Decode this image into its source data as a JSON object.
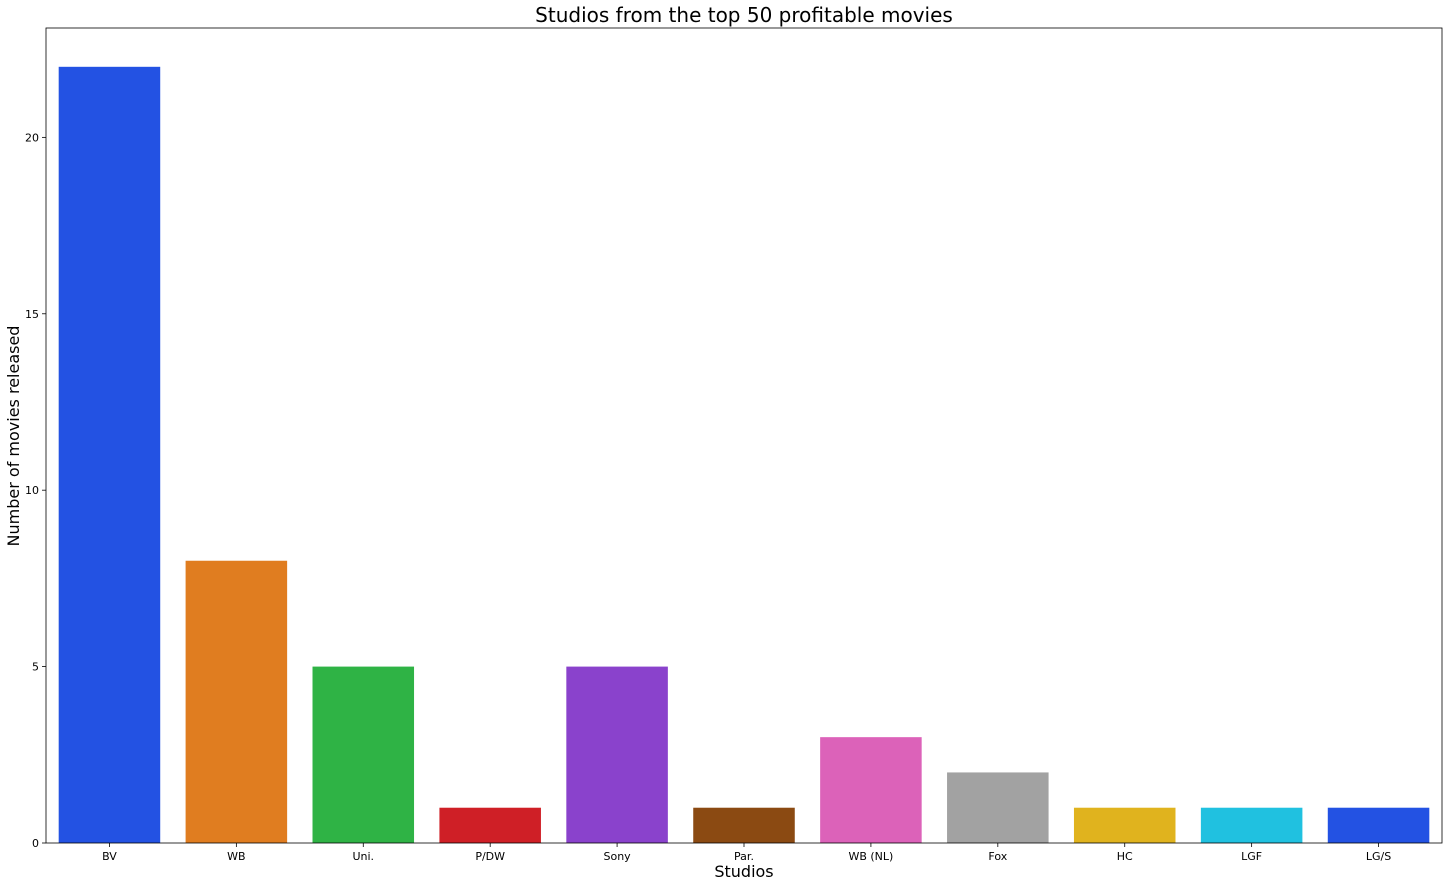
{
  "chart_data": {
    "type": "bar",
    "title": "Studios from the top 50 profitable movies",
    "xlabel": "Studios",
    "ylabel": "Number of movies released",
    "categories": [
      "BV",
      "WB",
      "Uni.",
      "P/DW",
      "Sony",
      "Par.",
      "WB (NL)",
      "Fox",
      "HC",
      "LGF",
      "LG/S"
    ],
    "values": [
      22,
      8,
      5,
      1,
      5,
      1,
      3,
      2,
      1,
      1,
      1
    ],
    "colors": [
      "#2352e3",
      "#e07d20",
      "#2fb345",
      "#cf1f26",
      "#8a42cc",
      "#8b4a12",
      "#dc62b9",
      "#a2a2a2",
      "#e0b31e",
      "#20c1e0",
      "#2352e3"
    ],
    "yticks": [
      0,
      5,
      10,
      15,
      20
    ],
    "ylim": [
      0,
      23.1
    ],
    "grid": false,
    "legend": "none"
  }
}
